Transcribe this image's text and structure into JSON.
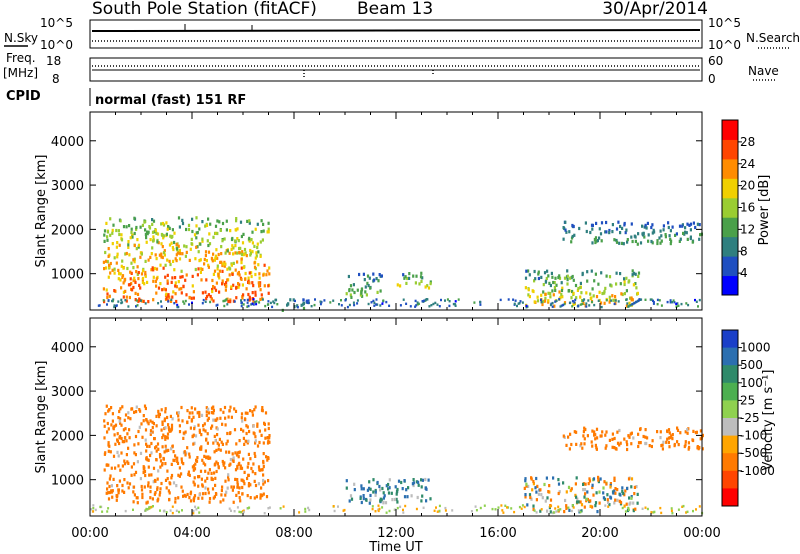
{
  "header": {
    "station": "South Pole Station (fitACF)",
    "beam": "Beam 13",
    "date": "30/Apr/2014"
  },
  "aux_panels": {
    "nsky_label": "N.Sky",
    "nsearch_label": "N.Search",
    "nsky_ticks": [
      "10^5",
      "10^0"
    ],
    "nsearch_ticks": [
      "10^5",
      "10^0"
    ],
    "freq_label_line1": "Freq.",
    "freq_label_line2": "[MHz]",
    "freq_ticks": [
      "18",
      "8"
    ],
    "nave_label": "Nave",
    "nave_ticks": [
      "60",
      "0"
    ],
    "cpid_label": "CPID",
    "cpid_text": "normal (fast) 151 RF"
  },
  "colors": {
    "power_scale": [
      "#0000ff",
      "#1f4fc0",
      "#2f7f7f",
      "#4aa04a",
      "#9acd32",
      "#f0d000",
      "#ff8c00",
      "#ff4500",
      "#ff0000"
    ],
    "velocity_scale": [
      "#1a3fc8",
      "#2b6fb0",
      "#2f8a6a",
      "#4caf50",
      "#8fd14f",
      "#bdbdbd",
      "#ffa500",
      "#ff7a00",
      "#ff4500",
      "#ff0000"
    ]
  },
  "chart_data": [
    {
      "type": "heatmap",
      "panel": "power",
      "ylabel": "Slant Range [km]",
      "ylim": [
        180,
        4650
      ],
      "yticks": [
        "1000",
        "2000",
        "3000",
        "4000"
      ],
      "xlim_hours": [
        0,
        24
      ],
      "colorbar_label": "Power [dB]",
      "colorbar_ticks": [
        "4",
        "8",
        "12",
        "16",
        "20",
        "24",
        "28"
      ],
      "echo_regions": [
        {
          "t_start": "00:30",
          "t_end": "07:00",
          "range_km": [
            400,
            2300
          ],
          "dB": [
            8,
            28
          ]
        },
        {
          "t_start": "07:30",
          "t_end": "08:30",
          "range_km": [
            200,
            500
          ],
          "dB": [
            4,
            12
          ]
        },
        {
          "t_start": "10:00",
          "t_end": "11:30",
          "range_km": [
            500,
            1050
          ],
          "dB": [
            4,
            16
          ]
        },
        {
          "t_start": "12:00",
          "t_end": "13:20",
          "range_km": [
            700,
            1050
          ],
          "dB": [
            4,
            20
          ]
        },
        {
          "t_start": "17:00",
          "t_end": "21:30",
          "range_km": [
            300,
            1100
          ],
          "dB": [
            4,
            24
          ]
        },
        {
          "t_start": "18:30",
          "t_end": "24:00",
          "range_km": [
            1700,
            2200
          ],
          "dB": [
            4,
            12
          ]
        }
      ]
    },
    {
      "type": "heatmap",
      "panel": "velocity",
      "xlabel": "Time UT",
      "ylabel": "Slant Range [km]",
      "ylim": [
        180,
        4650
      ],
      "yticks": [
        "1000",
        "2000",
        "3000",
        "4000"
      ],
      "xticks": [
        "00:00",
        "04:00",
        "08:00",
        "12:00",
        "16:00",
        "20:00",
        "00:00"
      ],
      "colorbar_label": "Velocity [m s⁻¹]",
      "colorbar_ticks": [
        "1000",
        "500",
        "100",
        "25",
        "-25",
        "-100",
        "-500",
        "-1000"
      ],
      "echo_regions": [
        {
          "t_start": "00:30",
          "t_end": "07:00",
          "range_km": [
            500,
            2700
          ],
          "velocity_ms": [
            -500,
            -100
          ]
        },
        {
          "t_start": "10:00",
          "t_end": "13:20",
          "range_km": [
            500,
            1050
          ],
          "velocity_ms": [
            100,
            500
          ]
        },
        {
          "t_start": "17:00",
          "t_end": "21:30",
          "range_km": [
            300,
            1100
          ],
          "velocity_ms": [
            -500,
            500
          ]
        },
        {
          "t_start": "18:30",
          "t_end": "24:00",
          "range_km": [
            1700,
            2200
          ],
          "velocity_ms": [
            -500,
            -100
          ]
        }
      ]
    }
  ]
}
